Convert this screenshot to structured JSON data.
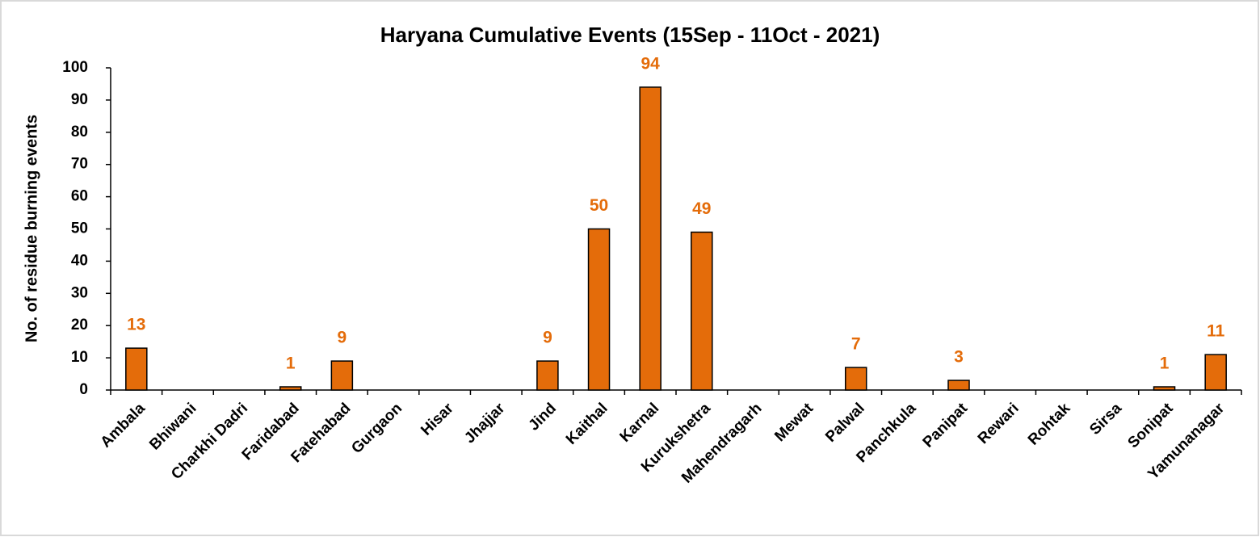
{
  "chart_data": {
    "type": "bar",
    "title": "Haryana Cumulative Events (15Sep - 11Oct - 2021)",
    "y_label": "No. of residue burning events",
    "categories": [
      "Ambala",
      "Bhiwani",
      "Charkhi Dadri",
      "Faridabad",
      "Fatehabad",
      "Gurgaon",
      "Hisar",
      "Jhajjar",
      "Jind",
      "Kaithal",
      "Karnal",
      "Kurukshetra",
      "Mahendragarh",
      "Mewat",
      "Palwal",
      "Panchkula",
      "Panipat",
      "Rewari",
      "Rohtak",
      "Sirsa",
      "Sonipat",
      "Yamunanagar"
    ],
    "values": [
      13,
      0,
      0,
      1,
      9,
      0,
      0,
      0,
      9,
      50,
      94,
      49,
      0,
      0,
      7,
      0,
      3,
      0,
      0,
      0,
      1,
      11
    ],
    "color": "#e46c0a",
    "label_color": "#e46c0a",
    "ylim": [
      0,
      100
    ],
    "yticks": [
      0,
      10,
      20,
      30,
      40,
      50,
      60,
      70,
      80,
      90,
      100
    ],
    "grid": false
  }
}
